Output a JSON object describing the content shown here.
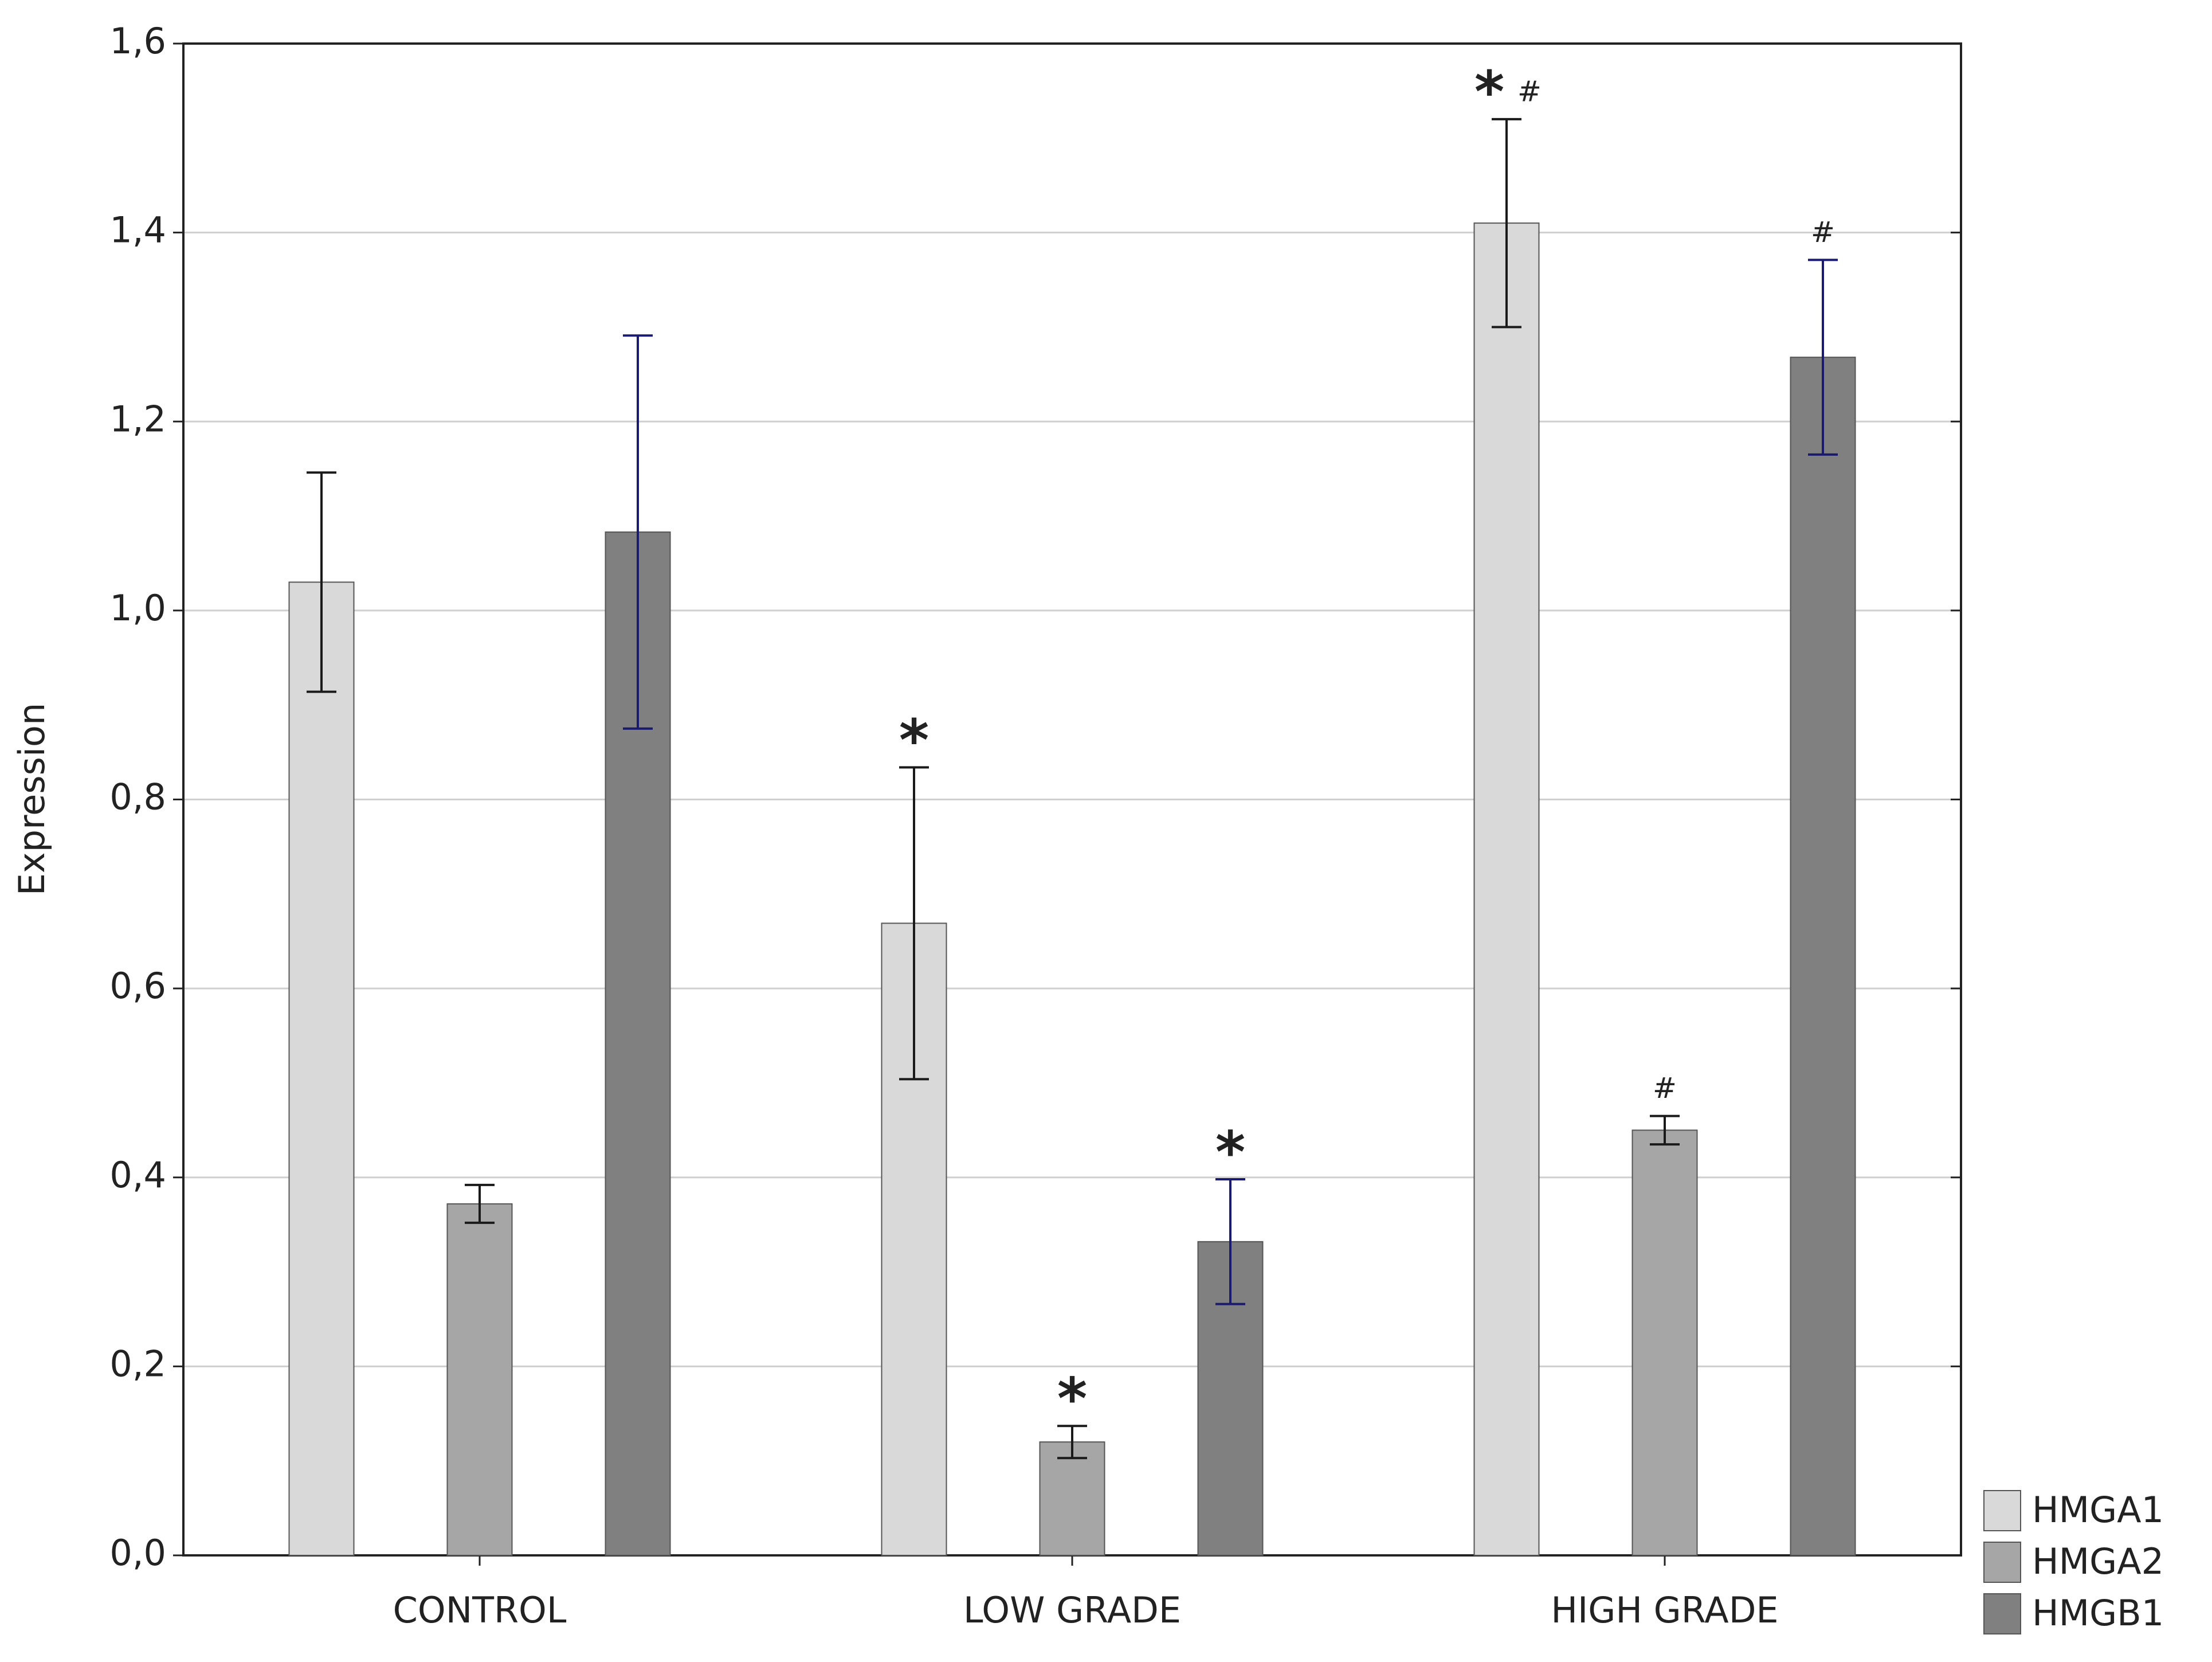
{
  "chart_data": {
    "type": "bar",
    "y_label": "Expression",
    "categories": [
      "CONTROL",
      "LOW GRADE",
      "HIGH GRADE"
    ],
    "series": [
      {
        "name": "HMGA1",
        "color": "#d9d9d9",
        "error_color": "#1a1a1a",
        "values": [
          1.03,
          0.669,
          1.41
        ],
        "errors": [
          0.116,
          0.165,
          0.11
        ],
        "significance": [
          null,
          "*",
          "*"
        ],
        "significance_high": [
          null,
          null,
          "#"
        ]
      },
      {
        "name": "HMGA2",
        "color": "#a6a6a6",
        "error_color": "#1a1a1a",
        "values": [
          0.372,
          0.12,
          0.45
        ],
        "errors": [
          0.02,
          0.017,
          0.015
        ],
        "significance": [
          null,
          "*",
          null
        ],
        "significance_high": [
          null,
          null,
          "#"
        ]
      },
      {
        "name": "HMGB1",
        "color": "#808080",
        "error_color": "#1a1a6e",
        "values": [
          1.083,
          0.332,
          1.268
        ],
        "errors": [
          0.208,
          0.066,
          0.103
        ],
        "significance": [
          null,
          "*",
          null
        ],
        "significance_high": [
          null,
          null,
          "#"
        ]
      }
    ],
    "ylim": [
      0,
      1.6
    ],
    "yticks": [
      {
        "value": 0,
        "label": "0,0"
      },
      {
        "value": 0.2,
        "label": "0,2"
      },
      {
        "value": 0.4,
        "label": "0,4"
      },
      {
        "value": 0.6,
        "label": "0,6"
      },
      {
        "value": 0.8,
        "label": "0,8"
      },
      {
        "value": 1.0,
        "label": "1,0"
      },
      {
        "value": 1.2,
        "label": "1,2"
      },
      {
        "value": 1.4,
        "label": "1,4"
      },
      {
        "value": 1.6,
        "label": "1,6"
      }
    ],
    "grid": true,
    "legend": "bottom-right"
  }
}
